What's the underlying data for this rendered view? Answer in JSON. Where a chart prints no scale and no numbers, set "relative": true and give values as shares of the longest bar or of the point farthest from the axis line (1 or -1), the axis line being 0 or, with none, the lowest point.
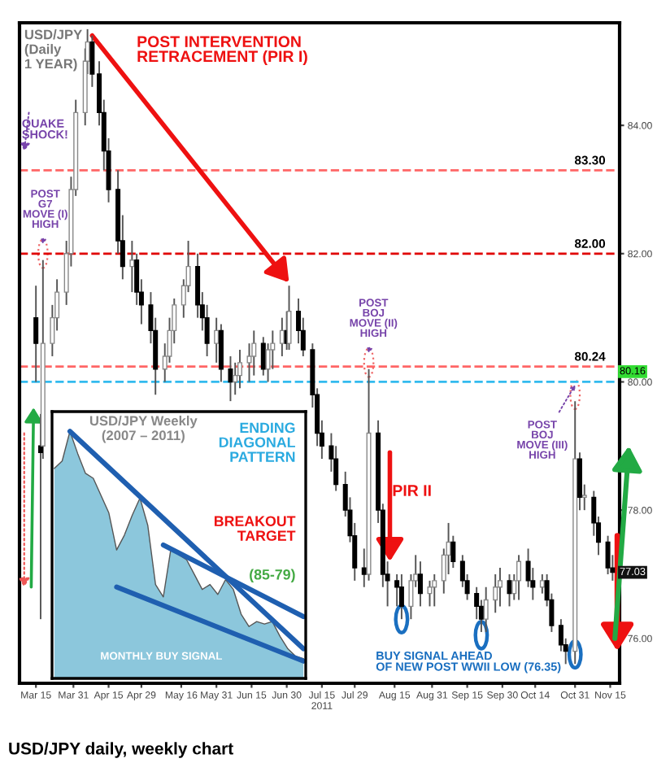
{
  "chart_data": [
    {
      "type": "candlestick",
      "title": "USD/JPY\n(Daily\n1 YEAR)",
      "x": [
        "2011-03-15",
        "2011-03-17",
        "2011-03-18",
        "2011-03-22",
        "2011-03-24",
        "2011-03-28",
        "2011-03-30",
        "2011-04-01",
        "2011-04-05",
        "2011-04-06",
        "2011-04-08",
        "2011-04-11",
        "2011-04-13",
        "2011-04-15",
        "2011-04-19",
        "2011-04-21",
        "2011-04-25",
        "2011-04-27",
        "2011-04-29",
        "2011-05-03",
        "2011-05-05",
        "2011-05-09",
        "2011-05-11",
        "2011-05-13",
        "2011-05-17",
        "2011-05-19",
        "2011-05-23",
        "2011-05-25",
        "2011-05-27",
        "2011-05-31",
        "2011-06-02",
        "2011-06-06",
        "2011-06-08",
        "2011-06-10",
        "2011-06-14",
        "2011-06-16",
        "2011-06-20",
        "2011-06-22",
        "2011-06-24",
        "2011-06-28",
        "2011-06-30",
        "2011-07-01",
        "2011-07-05",
        "2011-07-07",
        "2011-07-11",
        "2011-07-13",
        "2011-07-15",
        "2011-07-19",
        "2011-07-21",
        "2011-07-25",
        "2011-07-27",
        "2011-07-29",
        "2011-08-02",
        "2011-08-04",
        "2011-08-08",
        "2011-08-10",
        "2011-08-12",
        "2011-08-16",
        "2011-08-18",
        "2011-08-22",
        "2011-08-24",
        "2011-08-26",
        "2011-08-30",
        "2011-09-01",
        "2011-09-05",
        "2011-09-07",
        "2011-09-09",
        "2011-09-13",
        "2011-09-15",
        "2011-09-19",
        "2011-09-21",
        "2011-09-23",
        "2011-09-27",
        "2011-09-29",
        "2011-10-03",
        "2011-10-05",
        "2011-10-07",
        "2011-10-11",
        "2011-10-13",
        "2011-10-17",
        "2011-10-19",
        "2011-10-21",
        "2011-10-25",
        "2011-10-27",
        "2011-10-31",
        "2011-11-02",
        "2011-11-04",
        "2011-11-08",
        "2011-11-10",
        "2011-11-14",
        "2011-11-16"
      ],
      "ohlc": [
        [
          81.0,
          81.5,
          80.0,
          80.6
        ],
        [
          79.0,
          79.5,
          76.3,
          78.9
        ],
        [
          79.0,
          81.9,
          78.8,
          80.6
        ],
        [
          80.6,
          81.2,
          80.4,
          81.0
        ],
        [
          81.0,
          81.6,
          80.8,
          81.4
        ],
        [
          81.4,
          82.2,
          81.2,
          82.0
        ],
        [
          82.0,
          83.2,
          81.8,
          83.0
        ],
        [
          83.0,
          84.4,
          82.9,
          84.2
        ],
        [
          84.2,
          85.2,
          84.0,
          85.0
        ],
        [
          85.0,
          85.5,
          84.8,
          85.3
        ],
        [
          85.3,
          85.4,
          84.6,
          84.8
        ],
        [
          84.8,
          85.0,
          84.0,
          84.2
        ],
        [
          84.2,
          84.4,
          83.3,
          83.6
        ],
        [
          83.6,
          83.8,
          82.8,
          83.0
        ],
        [
          83.0,
          83.3,
          82.0,
          82.2
        ],
        [
          82.2,
          82.6,
          81.6,
          81.8
        ],
        [
          81.8,
          82.2,
          81.4,
          81.9
        ],
        [
          81.9,
          82.0,
          81.2,
          81.4
        ],
        [
          81.4,
          81.6,
          80.9,
          81.2
        ],
        [
          81.2,
          81.4,
          80.6,
          80.8
        ],
        [
          80.8,
          81.0,
          79.8,
          80.2
        ],
        [
          80.2,
          80.6,
          80.0,
          80.4
        ],
        [
          80.4,
          81.0,
          80.3,
          80.8
        ],
        [
          80.8,
          81.3,
          80.6,
          81.2
        ],
        [
          81.2,
          81.6,
          81.0,
          81.5
        ],
        [
          81.5,
          82.2,
          81.4,
          81.8
        ],
        [
          81.8,
          82.0,
          81.0,
          81.2
        ],
        [
          81.2,
          81.4,
          80.8,
          81.0
        ],
        [
          81.0,
          81.2,
          80.4,
          80.6
        ],
        [
          80.6,
          81.0,
          80.3,
          80.8
        ],
        [
          80.8,
          80.9,
          80.0,
          80.2
        ],
        [
          80.2,
          80.4,
          79.7,
          80.0
        ],
        [
          80.0,
          80.3,
          79.8,
          80.1
        ],
        [
          80.1,
          80.5,
          79.9,
          80.3
        ],
        [
          80.3,
          80.6,
          80.0,
          80.4
        ],
        [
          80.4,
          80.8,
          80.1,
          80.6
        ],
        [
          80.6,
          80.7,
          80.1,
          80.2
        ],
        [
          80.2,
          80.6,
          80.0,
          80.5
        ],
        [
          80.5,
          80.8,
          80.2,
          80.6
        ],
        [
          80.6,
          81.0,
          80.4,
          80.8
        ],
        [
          80.8,
          81.1,
          80.5,
          80.6
        ],
        [
          80.6,
          81.5,
          80.5,
          81.1
        ],
        [
          81.1,
          81.3,
          80.6,
          80.8
        ],
        [
          80.8,
          81.0,
          80.4,
          80.5
        ],
        [
          80.5,
          80.6,
          79.6,
          79.8
        ],
        [
          79.8,
          79.9,
          79.0,
          79.2
        ],
        [
          79.2,
          79.4,
          78.8,
          79.0
        ],
        [
          79.0,
          79.2,
          78.6,
          78.8
        ],
        [
          78.8,
          79.0,
          78.3,
          78.4
        ],
        [
          78.4,
          78.6,
          77.9,
          78.0
        ],
        [
          78.0,
          78.2,
          77.5,
          77.6
        ],
        [
          77.6,
          77.8,
          76.9,
          77.1
        ],
        [
          77.1,
          77.4,
          76.8,
          77.0
        ],
        [
          77.0,
          80.2,
          76.9,
          79.2
        ],
        [
          79.2,
          79.4,
          77.8,
          78.0
        ],
        [
          78.0,
          78.1,
          76.8,
          77.0
        ],
        [
          77.0,
          77.2,
          76.5,
          76.9
        ],
        [
          76.9,
          77.0,
          76.5,
          76.8
        ],
        [
          76.8,
          77.0,
          76.3,
          76.5
        ],
        [
          76.5,
          77.0,
          76.3,
          76.9
        ],
        [
          76.9,
          77.3,
          76.8,
          77.0
        ],
        [
          77.0,
          77.2,
          76.5,
          76.7
        ],
        [
          76.7,
          76.9,
          76.5,
          76.8
        ],
        [
          76.8,
          77.0,
          76.5,
          76.9
        ],
        [
          76.9,
          77.4,
          76.7,
          77.3
        ],
        [
          77.3,
          77.8,
          77.0,
          77.5
        ],
        [
          77.5,
          77.6,
          77.1,
          77.2
        ],
        [
          77.2,
          77.3,
          76.8,
          76.9
        ],
        [
          76.9,
          77.0,
          76.6,
          76.7
        ],
        [
          76.7,
          76.8,
          76.3,
          76.5
        ],
        [
          76.5,
          76.6,
          76.1,
          76.3
        ],
        [
          76.3,
          76.8,
          76.1,
          76.6
        ],
        [
          76.6,
          77.0,
          76.4,
          76.8
        ],
        [
          76.8,
          77.1,
          76.5,
          76.9
        ],
        [
          76.9,
          77.0,
          76.5,
          76.7
        ],
        [
          76.7,
          77.0,
          76.6,
          76.9
        ],
        [
          76.9,
          77.3,
          76.6,
          77.2
        ],
        [
          77.2,
          77.4,
          76.8,
          76.9
        ],
        [
          76.9,
          77.1,
          76.6,
          76.8
        ],
        [
          76.8,
          77.0,
          76.7,
          76.9
        ],
        [
          76.9,
          77.0,
          76.5,
          76.6
        ],
        [
          76.6,
          76.7,
          76.1,
          76.2
        ],
        [
          76.2,
          76.3,
          75.8,
          75.9
        ],
        [
          75.9,
          76.0,
          75.6,
          75.8
        ],
        [
          75.8,
          79.7,
          75.6,
          78.8
        ],
        [
          78.8,
          78.9,
          78.0,
          78.2
        ],
        [
          78.2,
          78.4,
          78.0,
          78.2
        ],
        [
          78.2,
          78.3,
          77.6,
          77.8
        ],
        [
          77.8,
          77.9,
          77.3,
          77.5
        ],
        [
          77.5,
          77.6,
          77.0,
          77.1
        ],
        [
          77.1,
          77.3,
          76.9,
          77.03
        ]
      ],
      "xlim": [
        "2011-03-08",
        "2011-11-19"
      ],
      "xticks": [
        {
          "value": "2011-03-15",
          "label": "Mar 15"
        },
        {
          "value": "2011-03-31",
          "label": "Mar 31"
        },
        {
          "value": "2011-04-15",
          "label": "Apr 15"
        },
        {
          "value": "2011-04-29",
          "label": "Apr 29"
        },
        {
          "value": "2011-05-16",
          "label": "May 16"
        },
        {
          "value": "2011-05-31",
          "label": "May 31"
        },
        {
          "value": "2011-06-15",
          "label": "Jun 15"
        },
        {
          "value": "2011-06-30",
          "label": "Jun 30"
        },
        {
          "value": "2011-07-15",
          "label": "Jul 15\n2011"
        },
        {
          "value": "2011-07-29",
          "label": "Jul 29"
        },
        {
          "value": "2011-08-15",
          "label": "Aug 15"
        },
        {
          "value": "2011-08-31",
          "label": "Aug 31"
        },
        {
          "value": "2011-09-15",
          "label": "Sep 15"
        },
        {
          "value": "2011-09-30",
          "label": "Sep 30"
        },
        {
          "value": "2011-10-14",
          "label": "Oct 14"
        },
        {
          "value": "2011-10-31",
          "label": "Oct 31"
        },
        {
          "value": "2011-11-15",
          "label": "Nov 15"
        }
      ],
      "ylim": [
        75.3,
        85.6
      ],
      "yticks": [
        {
          "value": 76,
          "label": "76.00"
        },
        {
          "value": 78,
          "label": "78.00"
        },
        {
          "value": 80,
          "label": "80.00"
        },
        {
          "value": 82,
          "label": "82.00"
        },
        {
          "value": 84,
          "label": "84.00"
        }
      ],
      "ref_lines": [
        {
          "axis": "y",
          "value": 83.3,
          "label": "83.30",
          "color": "#ff6666",
          "line_style": "dashed"
        },
        {
          "axis": "y",
          "value": 82.0,
          "label": "82.00",
          "color": "#e00000",
          "line_style": "dashed"
        },
        {
          "axis": "y",
          "value": 80.24,
          "label": "80.24",
          "color": "#ff6666",
          "line_style": "dashed"
        },
        {
          "axis": "y",
          "value": 80.0,
          "color": "#33bbee",
          "line_style": "dashed"
        }
      ],
      "annotations": [
        "POST INTERVENTION\nRETRACEMENT (PIR I)",
        "QUAKE\nSHOCK!",
        {
          "text": "POST\nG7\nMOVE (I)\nHIGH",
          "x": "2011-03-18",
          "y": 81.9
        },
        {
          "text": "POST\nBOJ\nMOVE (II)\nHIGH",
          "x": "2011-08-04",
          "y": 80.2
        },
        {
          "text": "POST\nBOJ\nMOVE (III)\nHIGH",
          "x": "2011-10-31",
          "y": 79.7
        },
        "PIR II",
        "BUY SIGNAL AHEAD\nOF NEW POST WWII LOW (76.35)",
        {
          "text": "80.16",
          "x": "2011-11-16",
          "y": 80.16
        },
        {
          "text": "77.03",
          "x": "2011-11-16",
          "y": 77.03
        },
        "USD/JPY daily, weekly chart"
      ]
    },
    {
      "type": "area",
      "relative": true,
      "title": "USD/JPY Weekly\n(2007 – 2011)",
      "categories": [
        null,
        null,
        null,
        null,
        null,
        null,
        null,
        null,
        null,
        null,
        null,
        null,
        null,
        null,
        null,
        null,
        null,
        null,
        null,
        null,
        null,
        null,
        null,
        null,
        null,
        null,
        null,
        null,
        null,
        null,
        null,
        null,
        null
      ],
      "series": [
        {
          "color": "#8cc7dc",
          "values": [
            0.85,
            0.88,
            1.0,
            0.91,
            0.83,
            0.81,
            0.74,
            0.67,
            0.52,
            0.58,
            0.66,
            0.73,
            0.62,
            0.38,
            0.33,
            0.53,
            0.5,
            0.48,
            0.42,
            0.36,
            0.38,
            0.34,
            0.4,
            0.36,
            0.26,
            0.21,
            0.23,
            0.22,
            0.23,
            0.17,
            0.12,
            0.09,
            0.08
          ]
        },
        {
          "type": "line",
          "color": "#1f5fb0",
          "values": [
            null,
            null,
            1.0,
            null,
            null,
            null,
            null,
            null,
            null,
            null,
            null,
            null,
            null,
            null,
            null,
            null,
            null,
            null,
            null,
            null,
            null,
            null,
            null,
            null,
            null,
            null,
            null,
            null,
            null,
            null,
            null,
            null,
            0.12
          ]
        },
        {
          "type": "line",
          "color": "#1f5fb0",
          "values": [
            null,
            null,
            null,
            null,
            null,
            null,
            null,
            null,
            null,
            null,
            null,
            null,
            null,
            null,
            0.54,
            null,
            null,
            null,
            null,
            null,
            null,
            null,
            null,
            null,
            null,
            null,
            null,
            null,
            null,
            null,
            null,
            null,
            0.25
          ]
        },
        {
          "type": "line",
          "color": "#1f5fb0",
          "values": [
            null,
            null,
            null,
            null,
            null,
            null,
            null,
            null,
            0.37,
            null,
            null,
            null,
            null,
            null,
            null,
            null,
            null,
            null,
            null,
            null,
            null,
            null,
            null,
            null,
            null,
            null,
            null,
            null,
            null,
            null,
            null,
            null,
            0.07
          ]
        }
      ],
      "annotations": [
        "ENDING\nDIAGONAL\nPATTERN",
        "BREAKOUT\nTARGET",
        "(85-79)",
        "MONTHLY BUY SIGNAL"
      ]
    }
  ]
}
